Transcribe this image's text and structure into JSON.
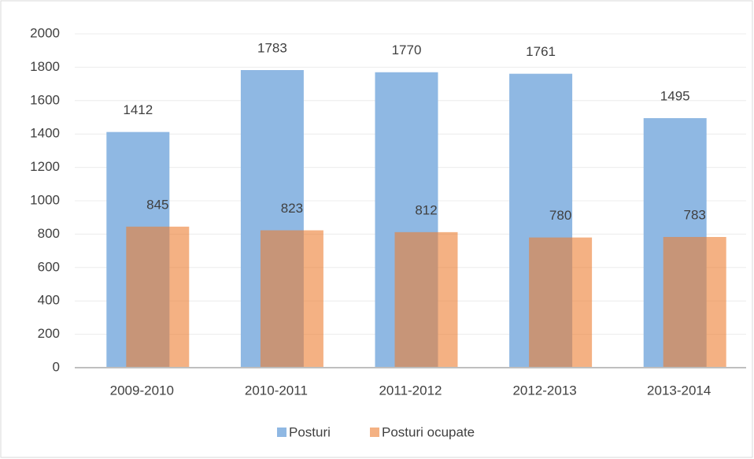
{
  "chart_data": {
    "type": "bar",
    "categories": [
      "2009-2010",
      "2010-2011",
      "2011-2012",
      "2012-2013",
      "2013-2014"
    ],
    "series": [
      {
        "name": "Posturi",
        "color": "#8fb8e3",
        "values": [
          1412,
          1783,
          1770,
          1761,
          1495
        ]
      },
      {
        "name": "Posturi ocupate",
        "color": "#ed7d31",
        "values": [
          845,
          823,
          812,
          780,
          783
        ]
      }
    ],
    "ylim": [
      0,
      2000
    ],
    "yticks": [
      0,
      200,
      400,
      600,
      800,
      1000,
      1200,
      1400,
      1600,
      1800,
      2000
    ],
    "grid": true,
    "legend": "bottom"
  }
}
